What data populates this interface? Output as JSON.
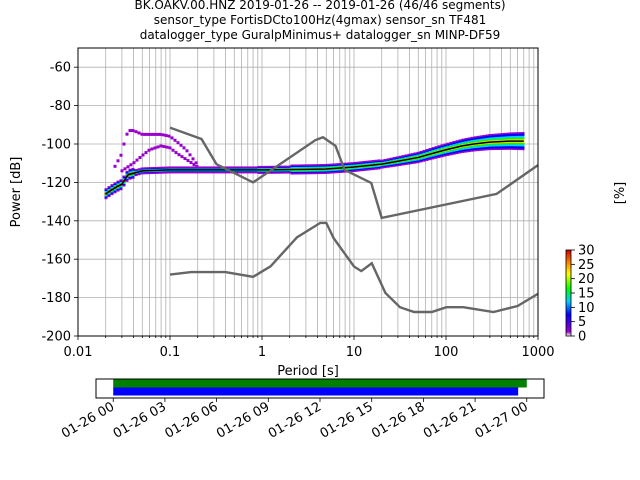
{
  "chart_data": [
    {
      "type": "heatmap",
      "title": "BK.OAKV.00.HNZ   2019-01-26 -- 2019-01-26  (46/46 segments)",
      "subtitle_lines": [
        "sensor_type FortisDCto100Hz(4gmax) sensor_sn TF481",
        "datalogger_type GuralpMinimus+ datalogger_sn MINP-DF59"
      ],
      "xlabel": "Period [s]",
      "ylabel": "Power [dB]",
      "xscale": "log",
      "xlim": [
        0.01,
        1000
      ],
      "ylim": [
        -200,
        -50
      ],
      "grid": true,
      "x_ticks": [
        "0.01",
        "0.1",
        "1",
        "10",
        "100",
        "1000"
      ],
      "y_ticks": [
        "-200",
        "-180",
        "-160",
        "-140",
        "-120",
        "-100",
        "-80",
        "-60"
      ],
      "colorbar": {
        "label": "[%]",
        "ticks": [
          "0",
          "5",
          "10",
          "15",
          "20",
          "25",
          "30"
        ],
        "range": [
          0,
          30
        ],
        "colors": [
          "#ffffff",
          "#9900cc",
          "#0000ff",
          "#00ccff",
          "#00ff00",
          "#ffff00",
          "#ff8800",
          "#cc0000"
        ]
      },
      "noise_model_high": {
        "x": [
          0.1,
          0.22,
          0.32,
          0.8,
          3.8,
          4.6,
          6.3,
          7.9,
          15.4,
          20,
          354.8,
          1000
        ],
        "y": [
          -91.5,
          -97.4,
          -110.5,
          -120,
          -98,
          -96.5,
          -101,
          -113.5,
          -120.3,
          -138.5,
          -126,
          -111
        ]
      },
      "noise_model_low": {
        "x": [
          0.1,
          0.17,
          0.4,
          0.8,
          1.24,
          2.4,
          4.3,
          5.0,
          6.0,
          10.0,
          12.0,
          15.6,
          21.9,
          31.6,
          45.0,
          70.0,
          101.0,
          154.0,
          328.0,
          600.0,
          1000.0
        ],
        "y": [
          -168,
          -166.7,
          -166.7,
          -169.2,
          -163.7,
          -148.6,
          -141.1,
          -141.1,
          -149.0,
          -163.8,
          -166.2,
          -162.1,
          -177.5,
          -185.0,
          -187.5,
          -187.5,
          -185.0,
          -185.0,
          -187.5,
          -184.4,
          -178.0
        ]
      },
      "psd_series": [
        {
          "name": "",
          "color": "#000000",
          "x": [
            0.02,
            0.023,
            0.027,
            0.03,
            0.035,
            0.05,
            0.1,
            0.3,
            1,
            3,
            5,
            10,
            20,
            30,
            50,
            70,
            100,
            150,
            200,
            300,
            500,
            700
          ],
          "y": [
            -126,
            -124,
            -122,
            -121,
            -116,
            -114,
            -113.5,
            -113.5,
            -113.5,
            -113.2,
            -113,
            -112,
            -110.5,
            -109,
            -107,
            -105,
            -103,
            -101,
            -100,
            -99,
            -98.5,
            -98.5
          ]
        },
        {
          "name": "",
          "color": "#9900cc",
          "x": [
            0.025,
            0.03,
            0.033,
            0.036,
            0.04,
            0.05,
            0.06,
            0.08,
            0.1,
            0.12,
            0.15,
            0.2
          ],
          "y": [
            -112,
            -105,
            -96,
            -93,
            -93,
            -95,
            -95,
            -95,
            -96,
            -99,
            -103,
            -111
          ]
        },
        {
          "name": "",
          "color": "#9900cc",
          "x": [
            0.03,
            0.04,
            0.05,
            0.06,
            0.08,
            0.1,
            0.12,
            0.15,
            0.2
          ],
          "y": [
            -114,
            -110,
            -106,
            -103,
            -101,
            -102,
            -105,
            -108,
            -112
          ]
        }
      ]
    },
    {
      "type": "bar",
      "x_ticks": [
        "01-26 00",
        "01-26 03",
        "01-26 06",
        "01-26 09",
        "01-26 12",
        "01-26 15",
        "01-26 18",
        "01-26 21",
        "01-27 00"
      ],
      "xlim_hours": [
        -1,
        25
      ],
      "series": [
        {
          "name": "",
          "color": "#008000",
          "start_hours": 0,
          "end_hours": 24
        },
        {
          "name": "",
          "color": "#0000ff",
          "start_hours": 0,
          "end_hours": 23.5
        }
      ]
    }
  ]
}
